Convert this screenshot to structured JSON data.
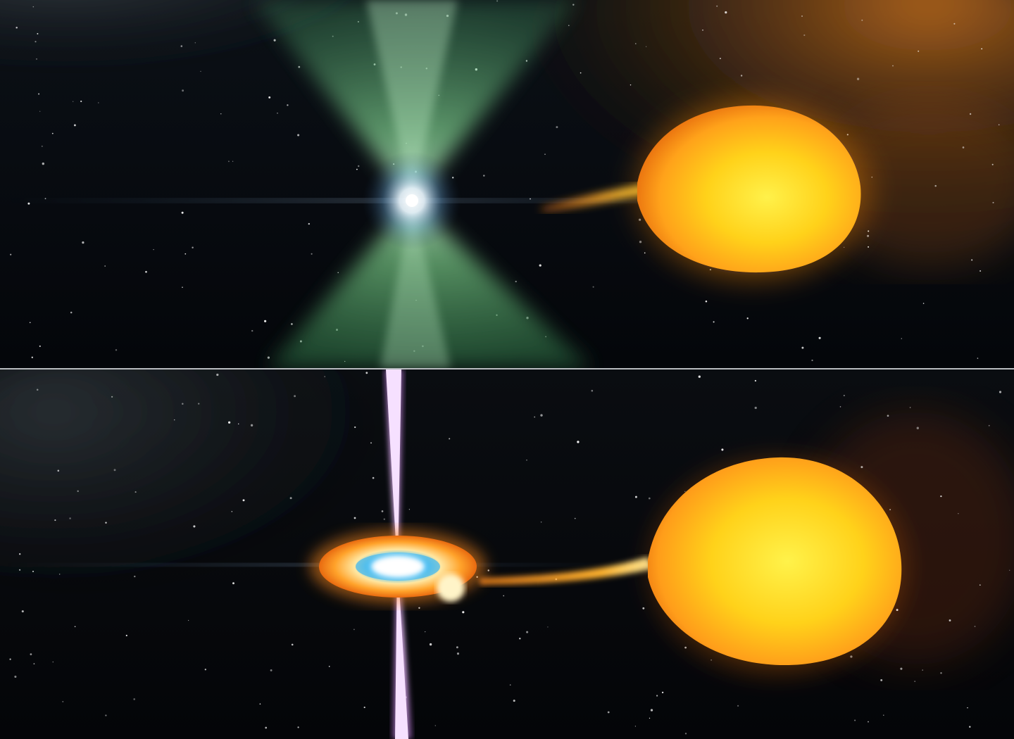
{
  "colors": {
    "space": "#05070b",
    "divider": "#b9bcc0",
    "pulsar_beam": "#7ddc8e",
    "jet": "#c77be0",
    "star_core": "#ffd21a",
    "star_edge": "#f07a12",
    "disk_center": "#ffffff",
    "disk_inner": "#4fc8ff",
    "disk_outer": "#ff9a1e"
  },
  "top_panel": {
    "objects": [
      "pulsar-beam-icon",
      "neutron-star-icon",
      "companion-star-icon",
      "gas-stream-icon"
    ]
  },
  "bottom_panel": {
    "objects": [
      "accretion-disk-icon",
      "relativistic-jet-icon",
      "companion-star-icon",
      "gas-stream-icon"
    ]
  }
}
